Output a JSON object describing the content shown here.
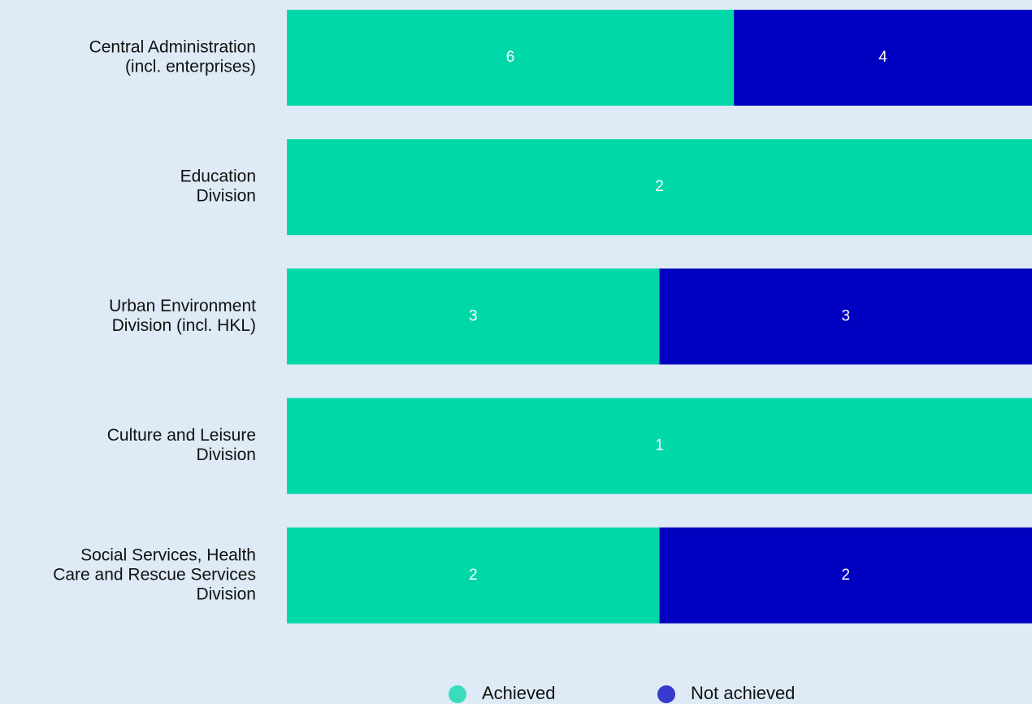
{
  "chart_data": {
    "type": "bar",
    "orientation": "horizontal",
    "stacking": "percent",
    "categories": [
      [
        "Central Administration",
        "(incl. enterprises)"
      ],
      [
        "Education",
        "Division"
      ],
      [
        "Urban Environment",
        "Division (incl. HKL)"
      ],
      [
        "Culture and Leisure",
        "Division"
      ],
      [
        "Social Services, Health",
        "Care and Rescue Services",
        "Division"
      ]
    ],
    "series": [
      {
        "name": "Achieved",
        "color": "#00d8a8",
        "values": [
          6,
          2,
          3,
          1,
          2
        ]
      },
      {
        "name": "Not achieved",
        "color": "#0000c0",
        "values": [
          4,
          null,
          3,
          null,
          2
        ]
      }
    ],
    "legend": "bottom"
  }
}
